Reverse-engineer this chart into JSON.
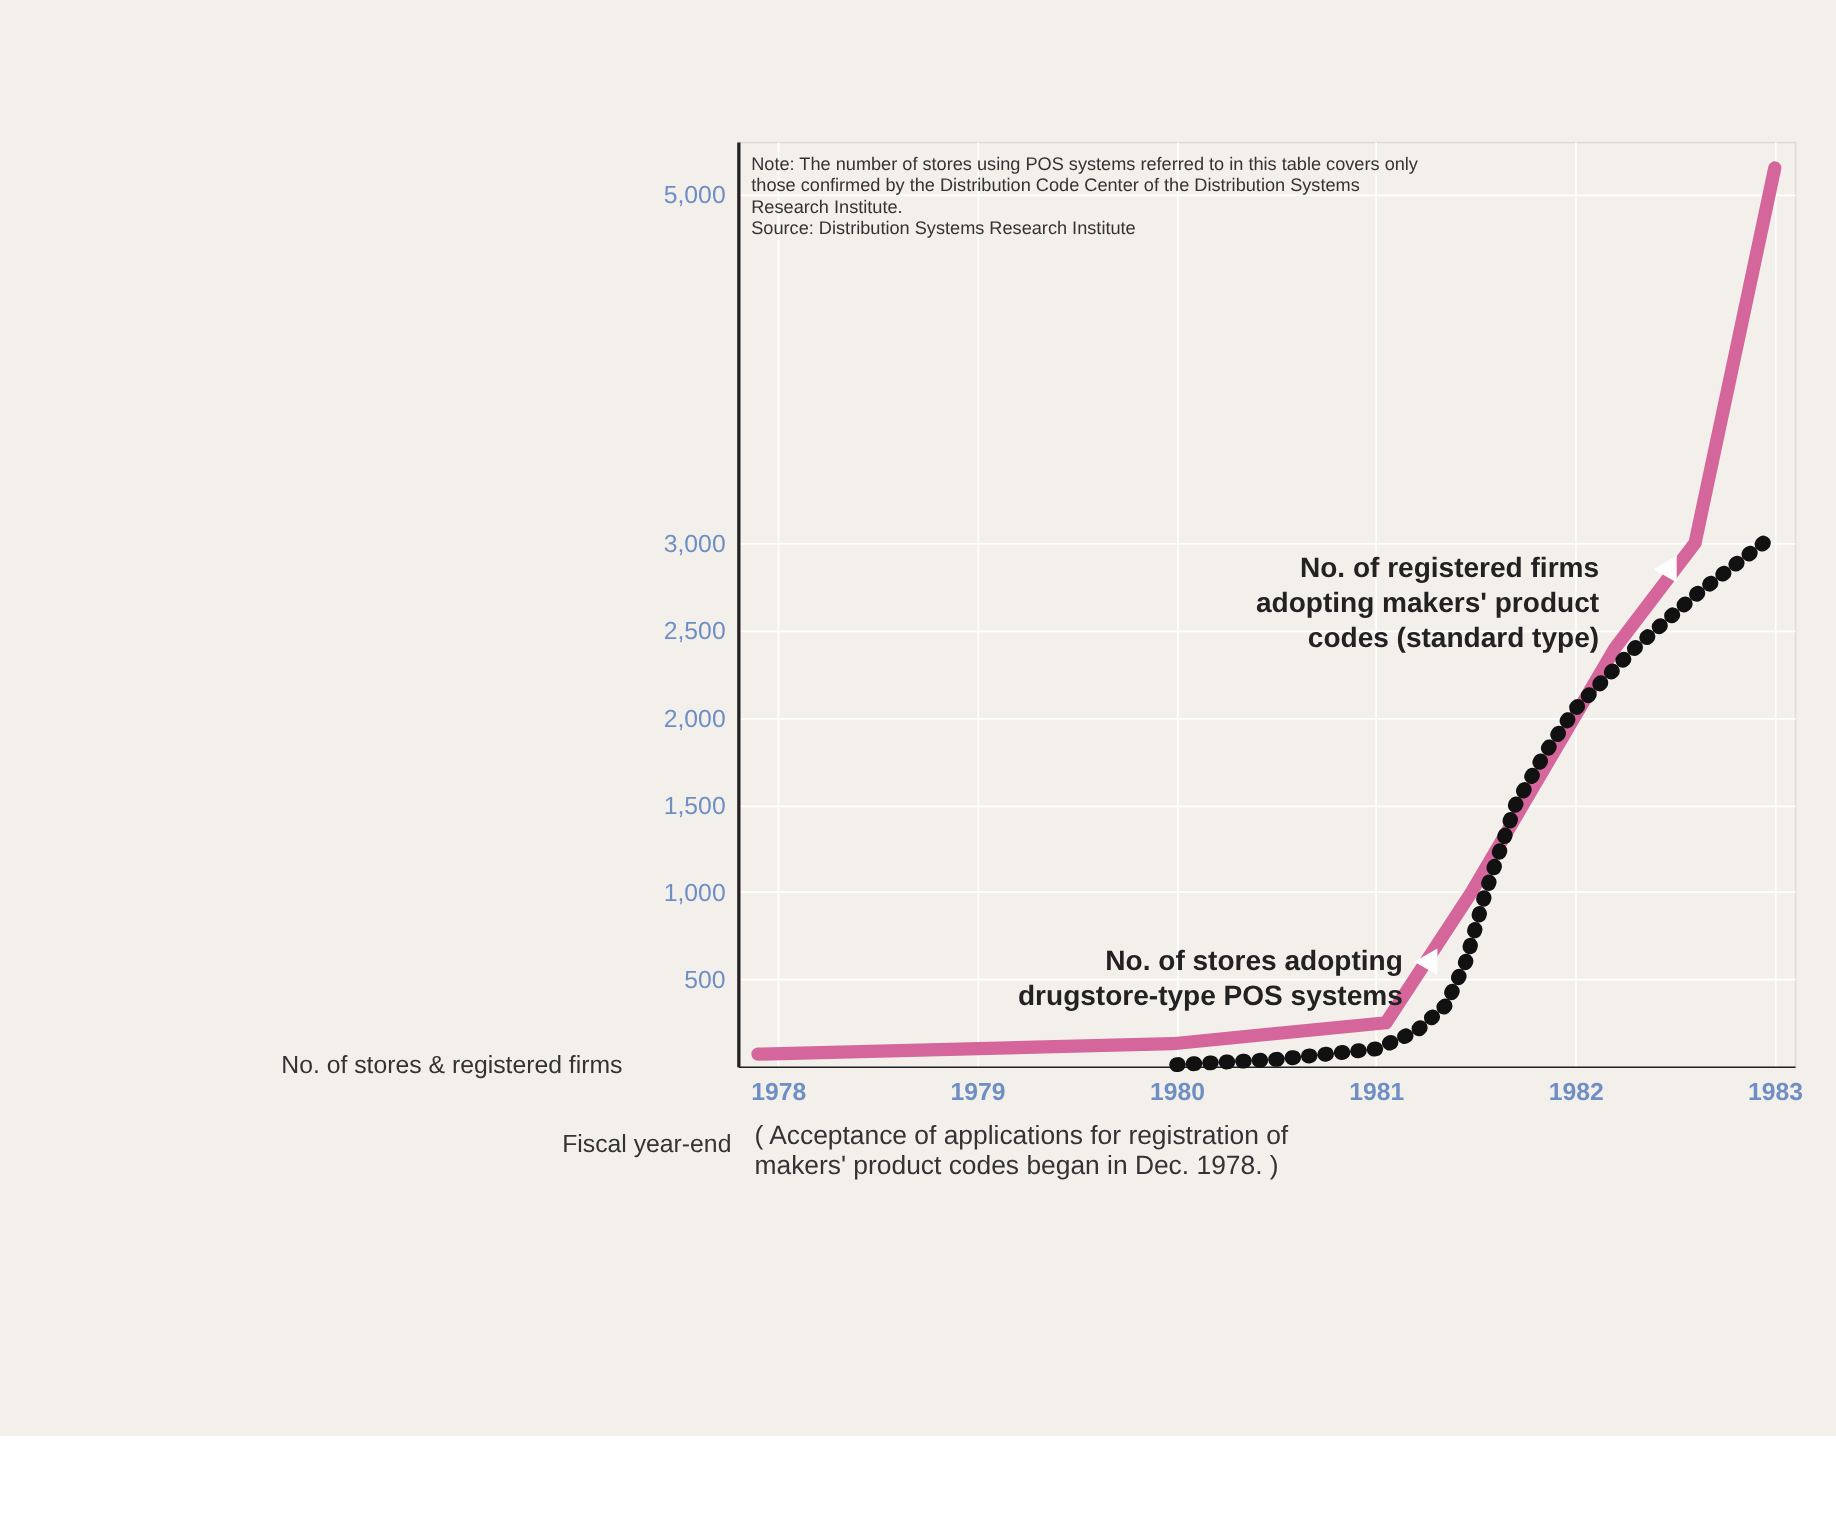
{
  "chart_data": {
    "type": "line",
    "xlabel": "Fiscal year-end",
    "ylabel": "No. of stores & registered firms",
    "xlim": [
      1977.8,
      1983.1
    ],
    "xticks": [
      1978,
      1979,
      1980,
      1981,
      1982,
      1983
    ],
    "ylim": [
      0,
      5300
    ],
    "yticks": [
      500,
      {
        "value": 1000,
        "label": "1,000"
      },
      {
        "value": 1500,
        "label": "1,500"
      },
      {
        "value": 2000,
        "label": "2,000"
      },
      {
        "value": 2500,
        "label": "2,500"
      },
      {
        "value": 3000,
        "label": "3,000"
      },
      {
        "value": 5000,
        "label": "5,000"
      }
    ],
    "grid": true,
    "series": [
      {
        "color": "#d4669c",
        "line_style": "solid",
        "x": [
          1977.9,
          1979.98,
          1981.05,
          1981.48,
          1982.2,
          1982.6,
          1983.0
        ],
        "values": [
          70,
          130,
          250,
          1000,
          2400,
          3000,
          5150
        ]
      },
      {
        "color": "#111111",
        "line_style": "dotted",
        "x": [
          1980.0,
          1980.5,
          1981.0,
          1981.2,
          1981.35,
          1981.45,
          1981.55,
          1981.7,
          1981.85,
          1982.0,
          1982.3,
          1982.6,
          1983.0
        ],
        "values": [
          10,
          40,
          100,
          200,
          350,
          600,
          1000,
          1500,
          1800,
          2050,
          2400,
          2700,
          3050
        ]
      }
    ],
    "annotations": [
      "Note:  The number of stores using POS systems referred to in this table covers only\n            those confirmed by the Distribution Code Center of the Distribution Systems\n            Research Institute.\nSource:  Distribution Systems Research Institute",
      {
        "text": "No. of registered firms\nadopting makers' product\ncodes (standard type)",
        "x": 1982.45,
        "y": 2850
      },
      {
        "text": "No. of stores adopting\ndrugstore-type POS systems",
        "x": 1981.25,
        "y": 600
      },
      "( Acceptance of applications for registration of\n  makers' product codes began in Dec. 1978. )"
    ]
  }
}
